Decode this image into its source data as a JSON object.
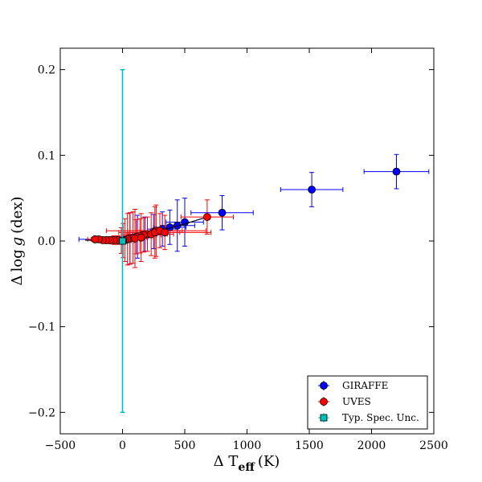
{
  "chart_data": {
    "type": "scatter",
    "title": "",
    "xlabel": "Δ T_eff (K)",
    "xlabel_main": "Δ T",
    "xlabel_sub": "eff",
    "xlabel_unit": "(K)",
    "ylabel": "Δ log g (dex)",
    "ylabel_delta": "Δ",
    "ylabel_log": "log",
    "ylabel_g": "g",
    "ylabel_unit": "(dex)",
    "xlim": [
      -500,
      2500
    ],
    "ylim": [
      -0.225,
      0.225
    ],
    "xticks": [
      -500,
      0,
      500,
      1000,
      1500,
      2000,
      2500
    ],
    "xtick_labels": [
      "−500",
      "0",
      "500",
      "1000",
      "1500",
      "2000",
      "2500"
    ],
    "yticks": [
      -0.2,
      -0.1,
      0.0,
      0.1,
      0.2
    ],
    "ytick_labels": [
      "−0.2",
      "−0.1",
      "0.0",
      "0.1",
      "0.2"
    ],
    "grid": false,
    "legend_position": "bottom-right",
    "series": [
      {
        "name": "GIRAFFE",
        "color": "#0000ff",
        "marker": "circle",
        "points": [
          {
            "x": 2200,
            "y": 0.081,
            "xerr": 260,
            "yerr": 0.02
          },
          {
            "x": 1520,
            "y": 0.06,
            "xerr": 250,
            "yerr": 0.02
          },
          {
            "x": 800,
            "y": 0.033,
            "xerr": 250,
            "yerr": 0.02
          },
          {
            "x": 500,
            "y": 0.022,
            "xerr": 150,
            "yerr": 0.028
          },
          {
            "x": 440,
            "y": 0.018,
            "xerr": 140,
            "yerr": 0.03
          },
          {
            "x": 380,
            "y": 0.016,
            "xerr": 130,
            "yerr": 0.02
          },
          {
            "x": 320,
            "y": 0.014,
            "xerr": 120,
            "yerr": 0.02
          },
          {
            "x": 250,
            "y": 0.011,
            "xerr": 110,
            "yerr": 0.02
          },
          {
            "x": 180,
            "y": 0.008,
            "xerr": 100,
            "yerr": 0.02
          },
          {
            "x": 120,
            "y": 0.005,
            "xerr": 90,
            "yerr": 0.025
          },
          {
            "x": 60,
            "y": 0.003,
            "xerr": 80,
            "yerr": 0.03
          },
          {
            "x": -220,
            "y": 0.002,
            "xerr": 130,
            "yerr": 0.003
          }
        ]
      },
      {
        "name": "UVES",
        "color": "#ff0000",
        "marker": "circle",
        "points": [
          {
            "x": 680,
            "y": 0.028,
            "xerr": 210,
            "yerr": 0.02
          },
          {
            "x": 270,
            "y": 0.012,
            "xerr": 400,
            "yerr": 0.03
          },
          {
            "x": 200,
            "y": 0.008,
            "xerr": 160,
            "yerr": 0.02
          },
          {
            "x": 170,
            "y": 0.007,
            "xerr": 140,
            "yerr": 0.02
          },
          {
            "x": 140,
            "y": 0.006,
            "xerr": 130,
            "yerr": 0.02
          },
          {
            "x": 110,
            "y": 0.005,
            "xerr": 120,
            "yerr": 0.02
          },
          {
            "x": 85,
            "y": 0.004,
            "xerr": 110,
            "yerr": 0.03
          },
          {
            "x": 60,
            "y": 0.003,
            "xerr": 110,
            "yerr": 0.03
          },
          {
            "x": 40,
            "y": 0.002,
            "xerr": 100,
            "yerr": 0.03
          },
          {
            "x": 20,
            "y": 0.001,
            "xerr": 100,
            "yerr": 0.025
          },
          {
            "x": 5,
            "y": 0.0005,
            "xerr": 90,
            "yerr": 0.02
          },
          {
            "x": -10,
            "y": 0.0005,
            "xerr": 80,
            "yerr": 0.015
          },
          {
            "x": -40,
            "y": 0.001,
            "xerr": 100,
            "yerr": 0.005
          },
          {
            "x": -70,
            "y": 0.001,
            "xerr": 90,
            "yerr": 0.005
          },
          {
            "x": -100,
            "y": 0.001,
            "xerr": 90,
            "yerr": 0.004
          },
          {
            "x": -130,
            "y": 0.001,
            "xerr": 80,
            "yerr": 0.004
          },
          {
            "x": -160,
            "y": 0.001,
            "xerr": 70,
            "yerr": 0.003
          },
          {
            "x": -190,
            "y": 0.002,
            "xerr": 60,
            "yerr": 0.003
          },
          {
            "x": -220,
            "y": 0.002,
            "xerr": 60,
            "yerr": 0.003
          },
          {
            "x": 100,
            "y": 0.003,
            "xerr": 100,
            "yerr": 0.034
          },
          {
            "x": 150,
            "y": 0.004,
            "xerr": 100,
            "yerr": 0.028
          },
          {
            "x": 230,
            "y": 0.008,
            "xerr": 180,
            "yerr": 0.025
          },
          {
            "x": 260,
            "y": 0.01,
            "xerr": 200,
            "yerr": 0.03
          },
          {
            "x": 300,
            "y": 0.012,
            "xerr": 180,
            "yerr": 0.02
          },
          {
            "x": 340,
            "y": 0.01,
            "xerr": 370,
            "yerr": 0.02
          }
        ]
      },
      {
        "name": "Typ. Spec. Unc.",
        "color": "#00bfbf",
        "marker": "square",
        "points": [
          {
            "x": 0,
            "y": 0.0,
            "xerr": 0,
            "yerr": 0.2
          }
        ]
      }
    ],
    "trend_line": {
      "color": "#000000",
      "x": [
        -300,
        0,
        100,
        200,
        300,
        500,
        680
      ],
      "y": [
        0.001,
        0.0,
        0.005,
        0.008,
        0.012,
        0.02,
        0.028
      ]
    }
  }
}
